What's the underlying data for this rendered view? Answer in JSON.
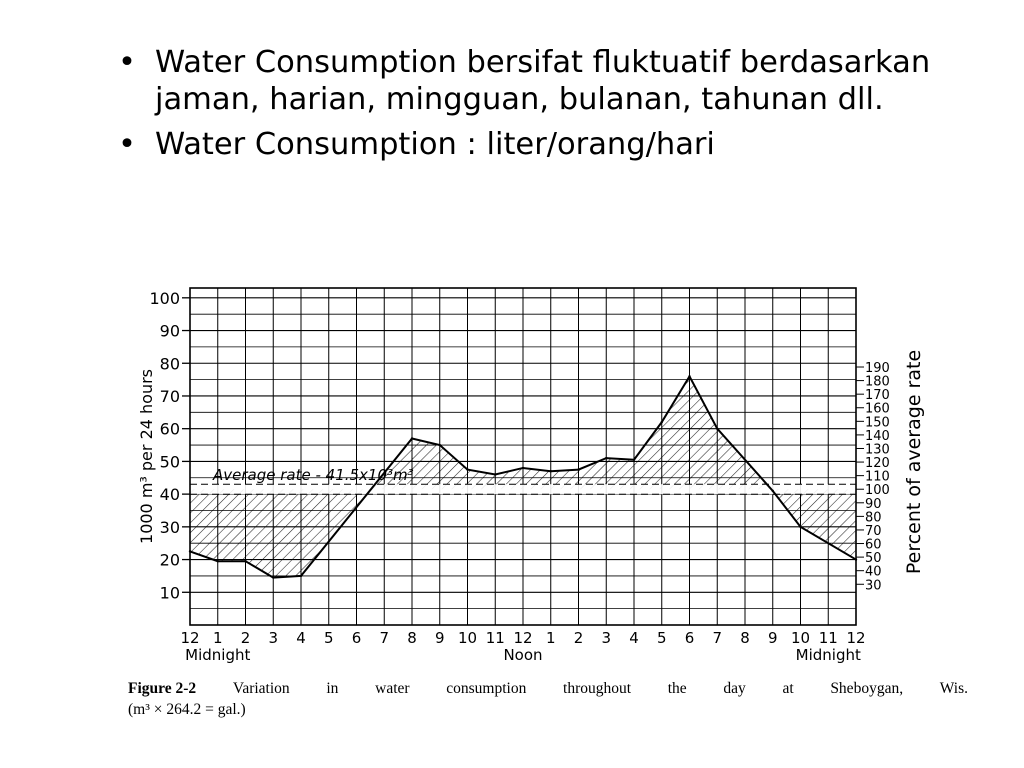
{
  "slide": {
    "bullets": [
      "Water Consumption bersifat fluktuatif berdasarkan jaman, harian, mingguan, bulanan, tahunan dll.",
      "Water Consumption : liter/orang/hari"
    ]
  },
  "chart_data": {
    "type": "line",
    "x_ticks": [
      "12",
      "1",
      "2",
      "3",
      "4",
      "5",
      "6",
      "7",
      "8",
      "9",
      "10",
      "11",
      "12",
      "1",
      "2",
      "3",
      "4",
      "5",
      "6",
      "7",
      "8",
      "9",
      "10",
      "11",
      "12"
    ],
    "x_sublabels": [
      "Midnight",
      "Noon",
      "Midnight"
    ],
    "x": [
      0,
      1,
      2,
      3,
      4,
      8,
      9,
      10,
      11,
      12,
      13,
      14,
      15,
      16,
      17,
      18,
      19,
      21,
      22,
      24
    ],
    "values": [
      22.5,
      19.5,
      19.5,
      14.5,
      15,
      57,
      55,
      47.5,
      46,
      48,
      47,
      47.5,
      51,
      50.5,
      62,
      76,
      60,
      41,
      30,
      20
    ],
    "ylabel": "1000 m³ per 24 hours",
    "y_ticks": [
      "10",
      "20",
      "30",
      "40",
      "50",
      "60",
      "70",
      "80",
      "90",
      "100"
    ],
    "ylim": [
      0,
      103
    ],
    "right_ylabel": "Percent of average rate",
    "right_ticks": [
      "30",
      "40",
      "50",
      "60",
      "70",
      "80",
      "90",
      "100",
      "110",
      "120",
      "130",
      "140",
      "150",
      "160",
      "170",
      "180",
      "190"
    ],
    "average_rate_value": 41.5,
    "average_rate_label": "Average rate - 41.5x10³m³",
    "grid": true,
    "caption_fig": "Figure 2-2",
    "caption_line1_words": [
      "Variation",
      "in",
      "water",
      "consumption",
      "throughout",
      "the",
      "day",
      "at",
      "Sheboygan,",
      "Wis."
    ],
    "caption_line2": "(m³ × 264.2 = gal.)"
  }
}
